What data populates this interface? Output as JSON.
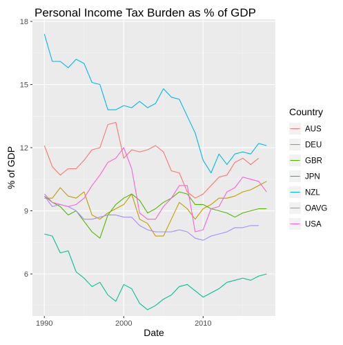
{
  "chart_data": {
    "type": "line",
    "title": "Personal Income Tax Burden as % of GDP",
    "xlabel": "Date",
    "ylabel": "% of GDP",
    "xlim": [
      1988.5,
      2019.1
    ],
    "ylim": [
      4.0,
      18.1
    ],
    "x_ticks": [
      1990,
      2000,
      2010
    ],
    "y_ticks": [
      6,
      9,
      12,
      15,
      18
    ],
    "grid": true,
    "legend_title": "Country",
    "legend_position": "right",
    "colors": {
      "panel_bg": "#ebebeb",
      "grid_major": "#ffffff",
      "grid_minor": "#f5f5f5"
    },
    "series": [
      {
        "name": "AUS",
        "color": "#F8766D",
        "x": [
          1990,
          1991,
          1992,
          1993,
          1994,
          1995,
          1996,
          1997,
          1998,
          1999,
          2000,
          2001,
          2002,
          2003,
          2004,
          2005,
          2006,
          2007,
          2008,
          2009,
          2010,
          2011,
          2012,
          2013,
          2014,
          2015,
          2016,
          2017
        ],
        "values": [
          12.1,
          11.1,
          10.7,
          11.0,
          11.0,
          11.4,
          11.9,
          12.0,
          13.1,
          13.2,
          11.5,
          11.9,
          11.8,
          11.9,
          12.1,
          11.8,
          10.9,
          10.8,
          9.9,
          9.6,
          9.8,
          10.2,
          10.6,
          10.7,
          11.3,
          11.5,
          11.2,
          11.5
        ]
      },
      {
        "name": "DEU",
        "color": "#C49A00",
        "x": [
          1990,
          1991,
          1992,
          1993,
          1994,
          1995,
          1996,
          1997,
          1998,
          1999,
          2000,
          2001,
          2002,
          2003,
          2004,
          2005,
          2006,
          2007,
          2008,
          2009,
          2010,
          2011,
          2012,
          2013,
          2014,
          2015,
          2016,
          2017,
          2018
        ],
        "values": [
          9.6,
          9.6,
          10.1,
          9.7,
          9.6,
          9.9,
          8.8,
          8.6,
          8.9,
          9.1,
          9.3,
          9.8,
          8.6,
          8.4,
          7.8,
          7.8,
          8.6,
          9.4,
          9.1,
          8.6,
          9.1,
          9.3,
          9.6,
          9.6,
          9.7,
          9.9,
          10.0,
          10.2,
          10.4
        ]
      },
      {
        "name": "GBR",
        "color": "#53B400",
        "x": [
          1990,
          1991,
          1992,
          1993,
          1994,
          1995,
          1996,
          1997,
          1998,
          1999,
          2000,
          2001,
          2002,
          2003,
          2004,
          2005,
          2006,
          2007,
          2008,
          2009,
          2010,
          2011,
          2012,
          2013,
          2014,
          2015,
          2016,
          2017,
          2018
        ],
        "values": [
          9.7,
          9.4,
          9.2,
          8.8,
          9.0,
          8.5,
          8.0,
          7.7,
          8.8,
          9.3,
          9.6,
          9.8,
          9.5,
          8.9,
          9.1,
          9.4,
          9.6,
          9.9,
          9.8,
          9.3,
          9.3,
          9.1,
          9.0,
          8.9,
          8.7,
          8.9,
          9.0,
          9.1,
          9.1
        ]
      },
      {
        "name": "JPN",
        "color": "#00C094",
        "x": [
          1990,
          1991,
          1992,
          1993,
          1994,
          1995,
          1996,
          1997,
          1998,
          1999,
          2000,
          2001,
          2002,
          2003,
          2004,
          2005,
          2006,
          2007,
          2008,
          2009,
          2010,
          2011,
          2012,
          2013,
          2014,
          2015,
          2016,
          2017,
          2018
        ],
        "values": [
          7.9,
          7.8,
          7.0,
          7.1,
          6.1,
          5.8,
          5.4,
          5.6,
          5.0,
          4.7,
          5.5,
          5.3,
          4.6,
          4.3,
          4.5,
          4.8,
          5.0,
          5.4,
          5.5,
          5.2,
          4.9,
          5.1,
          5.3,
          5.6,
          5.7,
          5.8,
          5.7,
          5.9,
          6.0
        ]
      },
      {
        "name": "NZL",
        "color": "#00B6EB",
        "x": [
          1990,
          1991,
          1992,
          1993,
          1994,
          1995,
          1996,
          1997,
          1998,
          1999,
          2000,
          2001,
          2002,
          2003,
          2004,
          2005,
          2006,
          2007,
          2008,
          2009,
          2010,
          2011,
          2012,
          2013,
          2014,
          2015,
          2016,
          2017,
          2018
        ],
        "values": [
          17.4,
          16.1,
          16.1,
          15.8,
          16.2,
          16.0,
          15.1,
          15.0,
          13.8,
          13.8,
          14.0,
          13.9,
          14.2,
          13.9,
          14.1,
          14.8,
          14.4,
          14.3,
          13.5,
          12.7,
          11.4,
          10.8,
          11.7,
          11.2,
          11.7,
          11.8,
          11.7,
          12.2,
          12.1
        ]
      },
      {
        "name": "OAVG",
        "color": "#A58AFF",
        "x": [
          1990,
          1991,
          1992,
          1993,
          1994,
          1995,
          1996,
          1997,
          1998,
          1999,
          2000,
          2001,
          2002,
          2003,
          2004,
          2005,
          2006,
          2007,
          2008,
          2009,
          2010,
          2011,
          2012,
          2013,
          2014,
          2015,
          2016,
          2017
        ],
        "values": [
          9.7,
          9.2,
          9.3,
          9.2,
          9.0,
          8.6,
          8.6,
          8.7,
          8.8,
          8.8,
          8.7,
          8.7,
          8.3,
          8.1,
          8.0,
          8.0,
          8.0,
          8.1,
          8.0,
          7.7,
          7.6,
          7.8,
          7.9,
          8.0,
          8.2,
          8.2,
          8.3,
          8.3
        ]
      },
      {
        "name": "USA",
        "color": "#FB61D7",
        "x": [
          1990,
          1991,
          1992,
          1993,
          1994,
          1995,
          1996,
          1997,
          1998,
          1999,
          2000,
          2001,
          2002,
          2003,
          2004,
          2005,
          2006,
          2007,
          2008,
          2009,
          2010,
          2011,
          2012,
          2013,
          2014,
          2015,
          2016,
          2017,
          2018
        ],
        "values": [
          9.8,
          9.4,
          9.3,
          9.2,
          9.3,
          9.6,
          10.2,
          10.7,
          11.3,
          11.5,
          12.0,
          11.0,
          8.9,
          8.6,
          8.6,
          9.2,
          9.6,
          10.2,
          10.2,
          8.0,
          8.1,
          9.1,
          9.2,
          9.9,
          10.1,
          10.6,
          10.5,
          10.4,
          9.9
        ]
      }
    ]
  }
}
